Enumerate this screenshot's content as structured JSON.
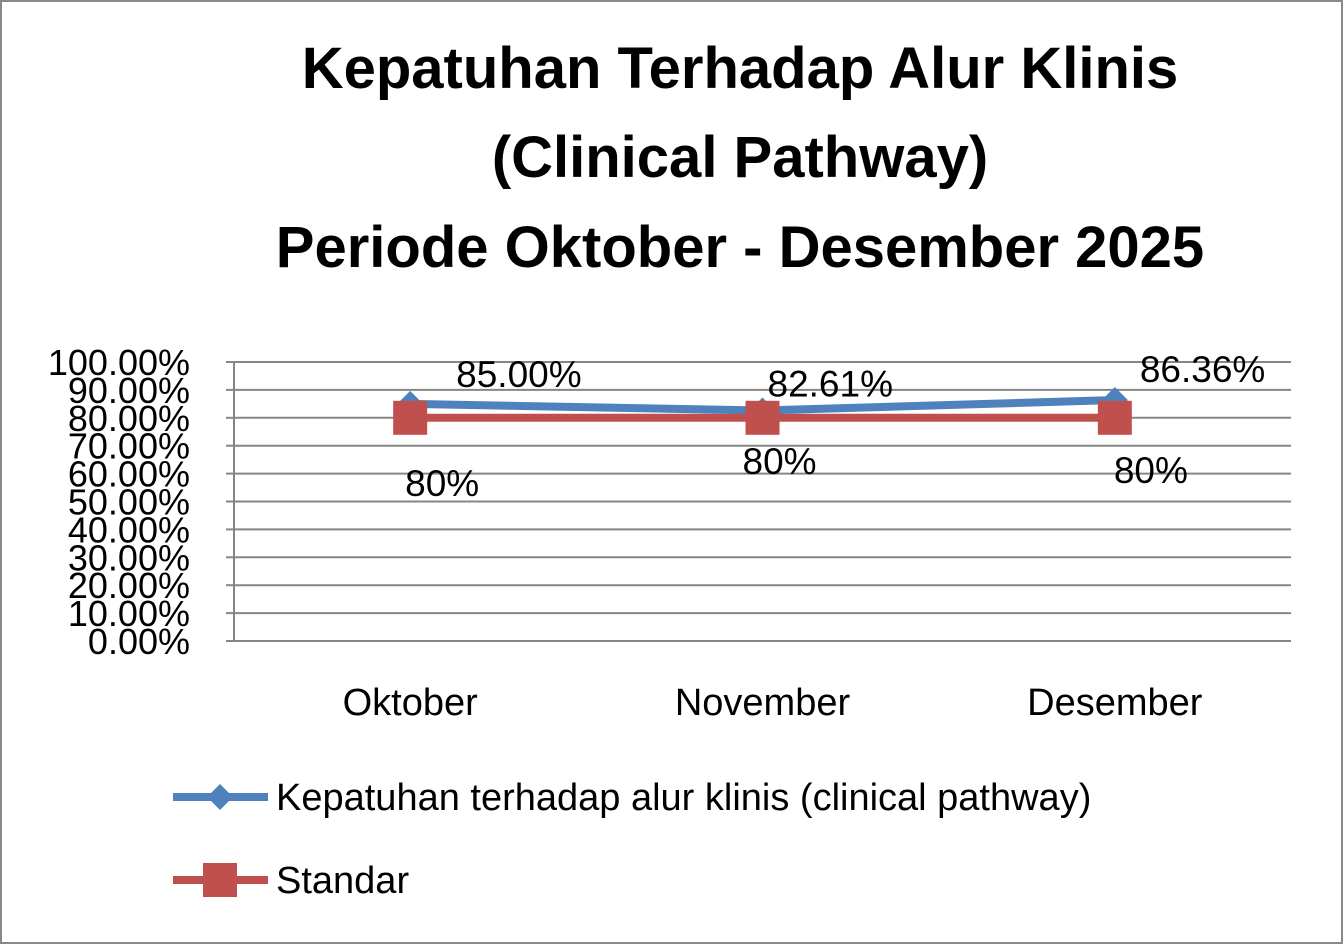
{
  "chart_data": {
    "type": "line",
    "title": [
      "Kepatuhan Terhadap Alur Klinis",
      "(Clinical Pathway)",
      "Periode Oktober - Desember 2025"
    ],
    "categories": [
      "Oktober",
      "November",
      "Desember"
    ],
    "y_ticks": [
      "0.00%",
      "10.00%",
      "20.00%",
      "30.00%",
      "40.00%",
      "50.00%",
      "60.00%",
      "70.00%",
      "80.00%",
      "90.00%",
      "100.00%"
    ],
    "ylim": [
      0,
      1
    ],
    "grid": true,
    "legend_position": "bottom",
    "series": [
      {
        "name": "Kepatuhan terhadap alur klinis (clinical pathway)",
        "values": [
          0.85,
          0.8261,
          0.8636
        ],
        "labels": [
          "85.00%",
          "82.61%",
          "86.36%"
        ],
        "color": "#4F81BD",
        "marker": "diamond"
      },
      {
        "name": "Standar",
        "values": [
          0.8,
          0.8,
          0.8
        ],
        "labels": [
          "80%",
          "80%",
          "80%"
        ],
        "color": "#C0504D",
        "marker": "square"
      }
    ]
  }
}
